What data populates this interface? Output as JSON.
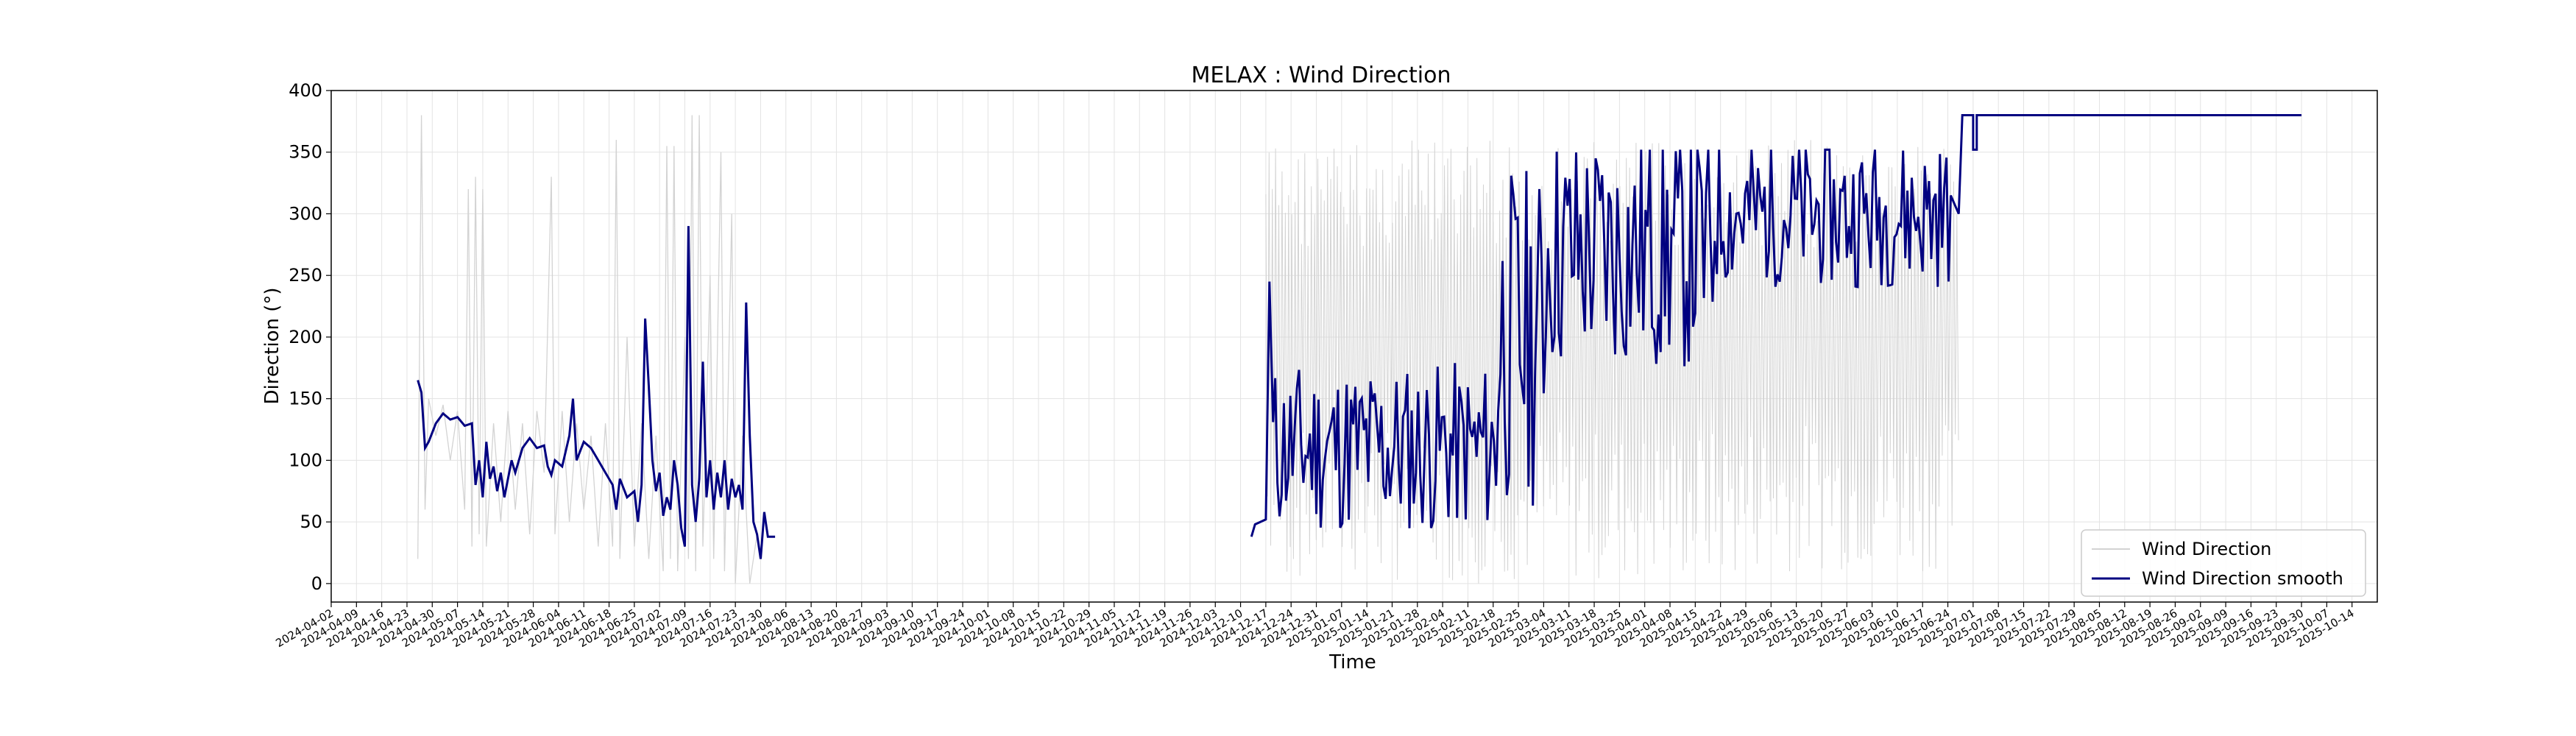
{
  "chart_data": {
    "type": "line",
    "title": "MELAX : Wind Direction",
    "xlabel": "Time",
    "ylabel": "Direction (°)",
    "ylim": [
      -15,
      400
    ],
    "xlim": [
      "2024-04-02",
      "2025-10-21"
    ],
    "yticks": [
      0,
      50,
      100,
      150,
      200,
      250,
      300,
      350,
      400
    ],
    "xticks": [
      "2024-04-02",
      "2024-04-09",
      "2024-04-16",
      "2024-04-23",
      "2024-04-30",
      "2024-05-07",
      "2024-05-14",
      "2024-05-21",
      "2024-05-28",
      "2024-06-04",
      "2024-06-11",
      "2024-06-18",
      "2024-06-25",
      "2024-07-02",
      "2024-07-09",
      "2024-07-16",
      "2024-07-23",
      "2024-07-30",
      "2024-08-06",
      "2024-08-13",
      "2024-08-20",
      "2024-08-27",
      "2024-09-03",
      "2024-09-10",
      "2024-09-17",
      "2024-09-24",
      "2024-10-01",
      "2024-10-08",
      "2024-10-15",
      "2024-10-22",
      "2024-10-29",
      "2024-11-05",
      "2024-11-12",
      "2024-11-19",
      "2024-11-26",
      "2024-12-03",
      "2024-12-10",
      "2024-12-17",
      "2024-12-24",
      "2024-12-31",
      "2025-01-07",
      "2025-01-14",
      "2025-01-21",
      "2025-01-28",
      "2025-02-04",
      "2025-02-11",
      "2025-02-18",
      "2025-02-25",
      "2025-03-04",
      "2025-03-11",
      "2025-03-18",
      "2025-03-25",
      "2025-04-01",
      "2025-04-08",
      "2025-04-15",
      "2025-04-22",
      "2025-04-29",
      "2025-05-06",
      "2025-05-13",
      "2025-05-20",
      "2025-05-27",
      "2025-06-03",
      "2025-06-10",
      "2025-06-17",
      "2025-06-24",
      "2025-07-01",
      "2025-07-08",
      "2025-07-15",
      "2025-07-22",
      "2025-07-29",
      "2025-08-05",
      "2025-08-12",
      "2025-08-19",
      "2025-08-26",
      "2025-09-02",
      "2025-09-09",
      "2025-09-16",
      "2025-09-23",
      "2025-09-30",
      "2025-10-07",
      "2025-10-14"
    ],
    "grid": true,
    "legend_position": "lower-right",
    "series": [
      {
        "name": "Wind Direction",
        "color": "#d3d3d3",
        "points": [
          [
            "2024-04-26",
            20
          ],
          [
            "2024-04-27",
            380
          ],
          [
            "2024-04-28",
            60
          ],
          [
            "2024-04-29",
            150
          ],
          [
            "2024-05-01",
            120
          ],
          [
            "2024-05-03",
            145
          ],
          [
            "2024-05-05",
            100
          ],
          [
            "2024-05-07",
            140
          ],
          [
            "2024-05-09",
            60
          ],
          [
            "2024-05-10",
            320
          ],
          [
            "2024-05-11",
            30
          ],
          [
            "2024-05-12",
            330
          ],
          [
            "2024-05-13",
            40
          ],
          [
            "2024-05-14",
            320
          ],
          [
            "2024-05-15",
            30
          ],
          [
            "2024-05-17",
            130
          ],
          [
            "2024-05-19",
            50
          ],
          [
            "2024-05-21",
            140
          ],
          [
            "2024-05-23",
            60
          ],
          [
            "2024-05-25",
            130
          ],
          [
            "2024-05-27",
            40
          ],
          [
            "2024-05-29",
            140
          ],
          [
            "2024-05-31",
            90
          ],
          [
            "2024-06-02",
            330
          ],
          [
            "2024-06-03",
            40
          ],
          [
            "2024-06-05",
            140
          ],
          [
            "2024-06-07",
            50
          ],
          [
            "2024-06-09",
            130
          ],
          [
            "2024-06-11",
            60
          ],
          [
            "2024-06-13",
            120
          ],
          [
            "2024-06-15",
            30
          ],
          [
            "2024-06-17",
            130
          ],
          [
            "2024-06-19",
            30
          ],
          [
            "2024-06-20",
            360
          ],
          [
            "2024-06-21",
            20
          ],
          [
            "2024-06-23",
            200
          ],
          [
            "2024-06-25",
            30
          ],
          [
            "2024-06-27",
            130
          ],
          [
            "2024-06-29",
            20
          ],
          [
            "2024-07-01",
            120
          ],
          [
            "2024-07-03",
            10
          ],
          [
            "2024-07-04",
            355
          ],
          [
            "2024-07-05",
            20
          ],
          [
            "2024-07-06",
            355
          ],
          [
            "2024-07-07",
            10
          ],
          [
            "2024-07-09",
            200
          ],
          [
            "2024-07-10",
            20
          ],
          [
            "2024-07-11",
            380
          ],
          [
            "2024-07-12",
            10
          ],
          [
            "2024-07-13",
            380
          ],
          [
            "2024-07-14",
            30
          ],
          [
            "2024-07-16",
            250
          ],
          [
            "2024-07-17",
            20
          ],
          [
            "2024-07-19",
            350
          ],
          [
            "2024-07-20",
            10
          ],
          [
            "2024-07-22",
            300
          ],
          [
            "2024-07-23",
            0
          ],
          [
            "2024-07-25",
            120
          ],
          [
            "2024-07-27",
            0
          ],
          [
            "2024-07-29",
            40
          ]
        ],
        "dense_segments": [
          {
            "start": "2024-12-17",
            "end": "2025-02-18",
            "low": 0,
            "high": 360
          },
          {
            "start": "2025-02-18",
            "end": "2025-04-29",
            "low": 0,
            "high": 360
          },
          {
            "start": "2025-04-29",
            "end": "2025-06-27",
            "low": 10,
            "high": 360
          }
        ]
      },
      {
        "name": "Wind Direction smooth",
        "color": "#000080",
        "points": [
          [
            "2024-04-26",
            165
          ],
          [
            "2024-04-27",
            155
          ],
          [
            "2024-04-28",
            110
          ],
          [
            "2024-04-29",
            115
          ],
          [
            "2024-05-01",
            130
          ],
          [
            "2024-05-03",
            138
          ],
          [
            "2024-05-05",
            133
          ],
          [
            "2024-05-07",
            135
          ],
          [
            "2024-05-09",
            128
          ],
          [
            "2024-05-11",
            130
          ],
          [
            "2024-05-12",
            80
          ],
          [
            "2024-05-13",
            100
          ],
          [
            "2024-05-14",
            70
          ],
          [
            "2024-05-15",
            115
          ],
          [
            "2024-05-16",
            85
          ],
          [
            "2024-05-17",
            95
          ],
          [
            "2024-05-18",
            75
          ],
          [
            "2024-05-19",
            90
          ],
          [
            "2024-05-20",
            70
          ],
          [
            "2024-05-21",
            85
          ],
          [
            "2024-05-22",
            100
          ],
          [
            "2024-05-23",
            90
          ],
          [
            "2024-05-25",
            110
          ],
          [
            "2024-05-27",
            118
          ],
          [
            "2024-05-29",
            110
          ],
          [
            "2024-05-31",
            112
          ],
          [
            "2024-06-01",
            95
          ],
          [
            "2024-06-02",
            88
          ],
          [
            "2024-06-03",
            100
          ],
          [
            "2024-06-05",
            95
          ],
          [
            "2024-06-07",
            120
          ],
          [
            "2024-06-08",
            150
          ],
          [
            "2024-06-09",
            100
          ],
          [
            "2024-06-11",
            115
          ],
          [
            "2024-06-13",
            110
          ],
          [
            "2024-06-15",
            100
          ],
          [
            "2024-06-17",
            90
          ],
          [
            "2024-06-19",
            80
          ],
          [
            "2024-06-20",
            60
          ],
          [
            "2024-06-21",
            85
          ],
          [
            "2024-06-23",
            70
          ],
          [
            "2024-06-25",
            75
          ],
          [
            "2024-06-26",
            50
          ],
          [
            "2024-06-27",
            80
          ],
          [
            "2024-06-28",
            215
          ],
          [
            "2024-06-29",
            160
          ],
          [
            "2024-06-30",
            100
          ],
          [
            "2024-07-01",
            75
          ],
          [
            "2024-07-02",
            90
          ],
          [
            "2024-07-03",
            55
          ],
          [
            "2024-07-04",
            70
          ],
          [
            "2024-07-05",
            60
          ],
          [
            "2024-07-06",
            100
          ],
          [
            "2024-07-07",
            80
          ],
          [
            "2024-07-08",
            45
          ],
          [
            "2024-07-09",
            30
          ],
          [
            "2024-07-10",
            290
          ],
          [
            "2024-07-11",
            80
          ],
          [
            "2024-07-12",
            50
          ],
          [
            "2024-07-13",
            85
          ],
          [
            "2024-07-14",
            180
          ],
          [
            "2024-07-15",
            70
          ],
          [
            "2024-07-16",
            100
          ],
          [
            "2024-07-17",
            60
          ],
          [
            "2024-07-18",
            90
          ],
          [
            "2024-07-19",
            70
          ],
          [
            "2024-07-20",
            100
          ],
          [
            "2024-07-21",
            60
          ],
          [
            "2024-07-22",
            85
          ],
          [
            "2024-07-23",
            70
          ],
          [
            "2024-07-24",
            80
          ],
          [
            "2024-07-25",
            60
          ],
          [
            "2024-07-26",
            228
          ],
          [
            "2024-07-27",
            120
          ],
          [
            "2024-07-28",
            50
          ],
          [
            "2024-07-29",
            40
          ],
          [
            "2024-07-30",
            20
          ],
          [
            "2024-07-31",
            58
          ],
          [
            "2024-08-01",
            38
          ],
          [
            "2024-08-03",
            38
          ]
        ]
      }
    ]
  }
}
